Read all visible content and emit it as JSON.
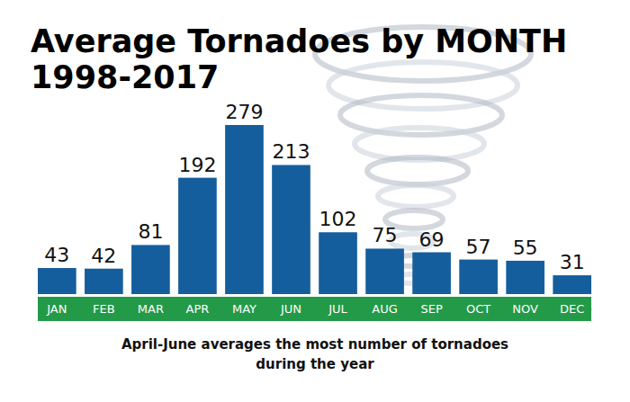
{
  "chart_data": {
    "type": "bar",
    "title": "Average Tornadoes by MONTH\n1998-2017",
    "annotation": "April-June averages the most number of tornadoes\nduring the year",
    "categories": [
      "JAN",
      "FEB",
      "MAR",
      "APR",
      "MAY",
      "JUN",
      "JUL",
      "AUG",
      "SEP",
      "OCT",
      "NOV",
      "DEC"
    ],
    "values": [
      43,
      42,
      81,
      192,
      279,
      213,
      102,
      75,
      69,
      57,
      55,
      31
    ],
    "color": "#155e9d",
    "data_labels": true,
    "tick_labels": "x"
  }
}
